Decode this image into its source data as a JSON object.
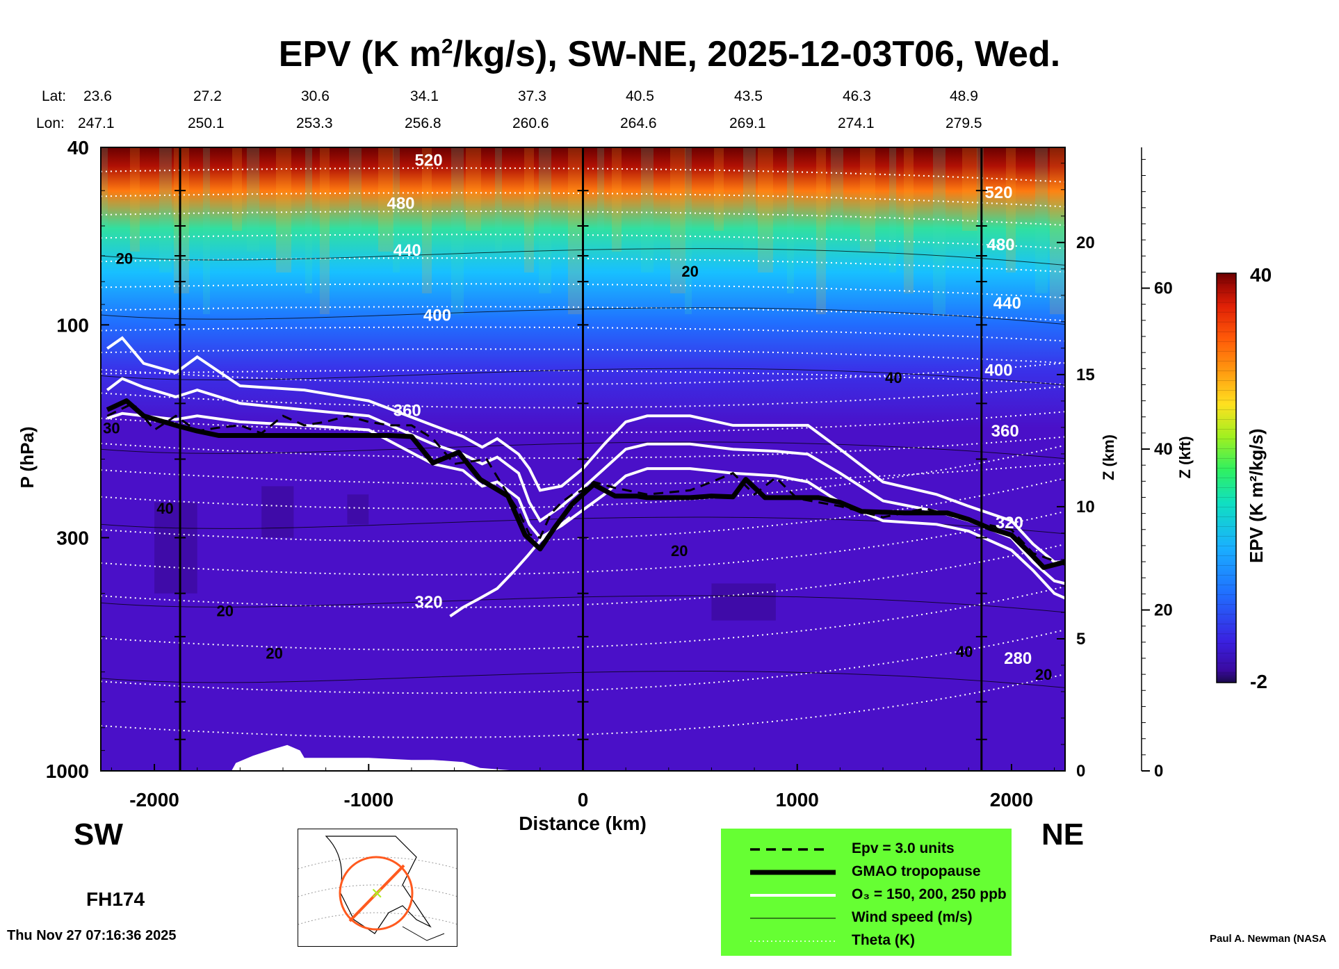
{
  "title_parts": [
    "EPV (K m",
    "2",
    "/kg/s), SW-NE, 2025-12-03T06, Wed."
  ],
  "lat_label": "Lat:",
  "lon_label": "Lon:",
  "lat_values": [
    "23.6",
    "27.2",
    "30.6",
    "34.1",
    "37.3",
    "40.5",
    "43.5",
    "46.3",
    "48.9"
  ],
  "lon_values": [
    "247.1",
    "250.1",
    "253.3",
    "256.8",
    "260.6",
    "264.6",
    "269.1",
    "274.1",
    "279.5"
  ],
  "direction_left": "SW",
  "direction_right": "NE",
  "forecast_hour": "FH174",
  "timestamp": "Thu Nov 27 07:16:36 2025",
  "credit": "Paul A. Newman (NASA",
  "colorbar": {
    "label": "EPV (K m²/kg/s)",
    "max_label": "40",
    "min_label": "-2",
    "stops": [
      "#1a0a4a",
      "#3a0aa0",
      "#3a20e0",
      "#2070ff",
      "#1ab0ff",
      "#10e0c0",
      "#30f060",
      "#a0f020",
      "#ffe020",
      "#ff9a10",
      "#ff5a08",
      "#e02006",
      "#a00a04",
      "#6a0000"
    ]
  },
  "legend": {
    "background": "#66ff33",
    "items": [
      {
        "label": "Epv = 3.0 units",
        "style": "dashed-black"
      },
      {
        "label": "GMAO tropopause",
        "style": "thick-black"
      },
      {
        "label": "O₃ = 150, 200, 250 ppb",
        "style": "white"
      },
      {
        "label": "Wind speed (m/s)",
        "style": "thin-black"
      },
      {
        "label": "Theta (K)",
        "style": "dotted-white"
      }
    ]
  },
  "chart_data": {
    "type": "heatmap",
    "xlabel": "Distance (km)",
    "ylabel": "P (hPa)",
    "z_label": "Z (km)",
    "zkft_label": "Z (kft)",
    "xlim": [
      -2250,
      2250
    ],
    "ylim": [
      1000,
      40
    ],
    "y_scale": "log",
    "x_ticks": [
      -2000,
      -1000,
      0,
      1000,
      2000
    ],
    "x_tick_labels": [
      "-2000",
      "-1000",
      "0",
      "1000",
      "2000"
    ],
    "y_ticks": [
      1000,
      300,
      100,
      40
    ],
    "y_tick_labels": [
      "1000",
      "300",
      "100",
      "40"
    ],
    "z_km_ticks": [
      0,
      5,
      10,
      15,
      20
    ],
    "z_km_labels": [
      "0",
      "5",
      "10",
      "15",
      "20"
    ],
    "z_kft_ticks": [
      0,
      20,
      40,
      60
    ],
    "z_kft_labels": [
      "0",
      "20",
      "40",
      "60"
    ],
    "theta_labels": [
      {
        "text": "520",
        "x": -720,
        "p": 44
      },
      {
        "text": "480",
        "x": -850,
        "p": 55
      },
      {
        "text": "440",
        "x": -820,
        "p": 70
      },
      {
        "text": "400",
        "x": -680,
        "p": 98
      },
      {
        "text": "360",
        "x": -820,
        "p": 160
      },
      {
        "text": "320",
        "x": -720,
        "p": 430
      },
      {
        "text": "520",
        "x": 1940,
        "p": 52
      },
      {
        "text": "480",
        "x": 1950,
        "p": 68
      },
      {
        "text": "440",
        "x": 1980,
        "p": 92
      },
      {
        "text": "400",
        "x": 1940,
        "p": 130
      },
      {
        "text": "360",
        "x": 1970,
        "p": 178
      },
      {
        "text": "320",
        "x": 1990,
        "p": 286
      },
      {
        "text": "280",
        "x": 2030,
        "p": 575
      }
    ],
    "wind_labels": [
      {
        "text": "20",
        "x": -2140,
        "p": 73
      },
      {
        "text": "20",
        "x": 500,
        "p": 78
      },
      {
        "text": "40",
        "x": 1450,
        "p": 135
      },
      {
        "text": "40",
        "x": -1950,
        "p": 265
      },
      {
        "text": "20",
        "x": 450,
        "p": 330
      },
      {
        "text": "20",
        "x": -1670,
        "p": 450
      },
      {
        "text": "20",
        "x": -1440,
        "p": 560
      },
      {
        "text": "40",
        "x": 1780,
        "p": 555
      },
      {
        "text": "20",
        "x": 2150,
        "p": 625
      },
      {
        "text": "30",
        "x": -2200,
        "p": 175
      }
    ],
    "tropopause": {
      "x": [
        -2220,
        -2130,
        -2050,
        -1900,
        -1800,
        -1700,
        -900,
        -800,
        -700,
        -580,
        -480,
        -350,
        -270,
        -200,
        -130,
        -50,
        50,
        150,
        250,
        300,
        400,
        500,
        600,
        700,
        760,
        850,
        1000,
        1100,
        1200,
        1300,
        1500,
        1700,
        1800,
        1900,
        2000,
        2100,
        2150,
        2250
      ],
      "p": [
        155,
        148,
        160,
        168,
        173,
        177,
        177,
        178,
        204,
        193,
        222,
        242,
        296,
        318,
        284,
        252,
        228,
        242,
        242,
        244,
        244,
        244,
        242,
        243,
        222,
        244,
        244,
        244,
        250,
        262,
        264,
        264,
        273,
        286,
        296,
        330,
        350,
        340
      ]
    },
    "epv3": {
      "x": [
        -2220,
        -2100,
        -2000,
        -1900,
        -1800,
        -1700,
        -1600,
        -1500,
        -1400,
        -1300,
        -1200,
        -1100,
        -1000,
        -900,
        -800,
        -700,
        -600,
        -450,
        -350,
        -300,
        -250,
        -200,
        -150,
        -100,
        -50,
        0,
        50,
        150,
        300,
        500,
        600,
        700,
        800,
        900,
        1000,
        1200,
        1400,
        1600,
        1800,
        2000,
        2100,
        2250
      ],
      "p": [
        160,
        150,
        172,
        160,
        173,
        170,
        168,
        175,
        160,
        168,
        165,
        160,
        165,
        168,
        168,
        180,
        205,
        200,
        240,
        262,
        295,
        300,
        265,
        250,
        240,
        235,
        225,
        232,
        240,
        235,
        225,
        215,
        240,
        220,
        245,
        255,
        270,
        258,
        275,
        288,
        325,
        345
      ]
    },
    "o3_150": {
      "x": [
        -2220,
        -2150,
        -2050,
        -1900,
        -1800,
        -1600,
        -1300,
        -1000,
        -700,
        -560,
        -470,
        -400,
        -300,
        -250,
        -200,
        -100,
        0,
        100,
        200,
        300,
        500,
        700,
        900,
        1050,
        1200,
        1400,
        1650,
        1800,
        2000,
        2100,
        2200,
        2250
      ],
      "p": [
        113,
        107,
        122,
        128,
        118,
        137,
        140,
        148,
        168,
        178,
        188,
        180,
        195,
        210,
        235,
        230,
        210,
        185,
        165,
        160,
        160,
        168,
        168,
        168,
        190,
        225,
        240,
        255,
        275,
        310,
        340,
        340
      ]
    },
    "o3_200": {
      "x": [
        -2220,
        -2150,
        -2050,
        -1900,
        -1800,
        -1600,
        -1300,
        -1000,
        -700,
        -560,
        -470,
        -400,
        -300,
        -250,
        -200,
        -100,
        0,
        100,
        200,
        300,
        500,
        700,
        900,
        1050,
        1200,
        1400,
        1650,
        1800,
        2000,
        2100,
        2200,
        2250
      ],
      "p": [
        140,
        132,
        138,
        145,
        140,
        150,
        155,
        160,
        185,
        195,
        205,
        198,
        215,
        250,
        275,
        255,
        232,
        210,
        190,
        185,
        185,
        190,
        192,
        195,
        215,
        248,
        262,
        275,
        300,
        340,
        375,
        380
      ]
    },
    "o3_250": {
      "x": [
        -2220,
        -2150,
        -2050,
        -1900,
        -1800,
        -1600,
        -1300,
        -1000,
        -700,
        -560,
        -470,
        -400,
        -300,
        -250,
        -200,
        -100,
        0,
        100,
        200,
        300,
        500,
        700,
        900,
        1050,
        1200,
        1400,
        1650,
        1800,
        2000,
        2100,
        2200,
        2250
      ],
      "p": [
        162,
        158,
        160,
        163,
        160,
        165,
        168,
        172,
        205,
        212,
        230,
        225,
        245,
        280,
        300,
        282,
        260,
        240,
        218,
        210,
        210,
        215,
        218,
        225,
        250,
        275,
        280,
        290,
        320,
        355,
        400,
        410
      ]
    },
    "o3_fold": {
      "x": [
        -620,
        -560,
        -480,
        -400,
        -330,
        -260,
        -200,
        -150,
        -100,
        -60
      ],
      "p": [
        450,
        430,
        410,
        390,
        360,
        330,
        305,
        290,
        280,
        270
      ]
    }
  }
}
